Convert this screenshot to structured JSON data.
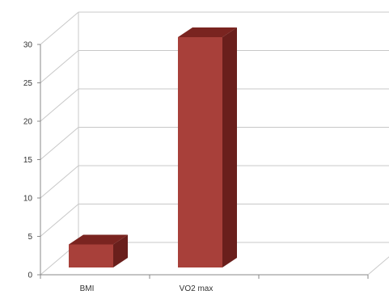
{
  "chart_data": {
    "type": "bar",
    "style": "3d-column",
    "categories": [
      "BMI",
      "VO2 max",
      ""
    ],
    "series": [
      {
        "values": [
          3,
          30,
          null
        ],
        "color": "#a8403a",
        "top_color": "#7a2420",
        "side_color": "#6a1f1c"
      }
    ],
    "y_ticks": [
      "0",
      "5",
      "10",
      "15",
      "20",
      "25",
      "30"
    ],
    "ylim": [
      0,
      30
    ],
    "grid": true,
    "legend": "none",
    "gridline_color": "#c8c8c8",
    "axis_color": "#888888"
  }
}
